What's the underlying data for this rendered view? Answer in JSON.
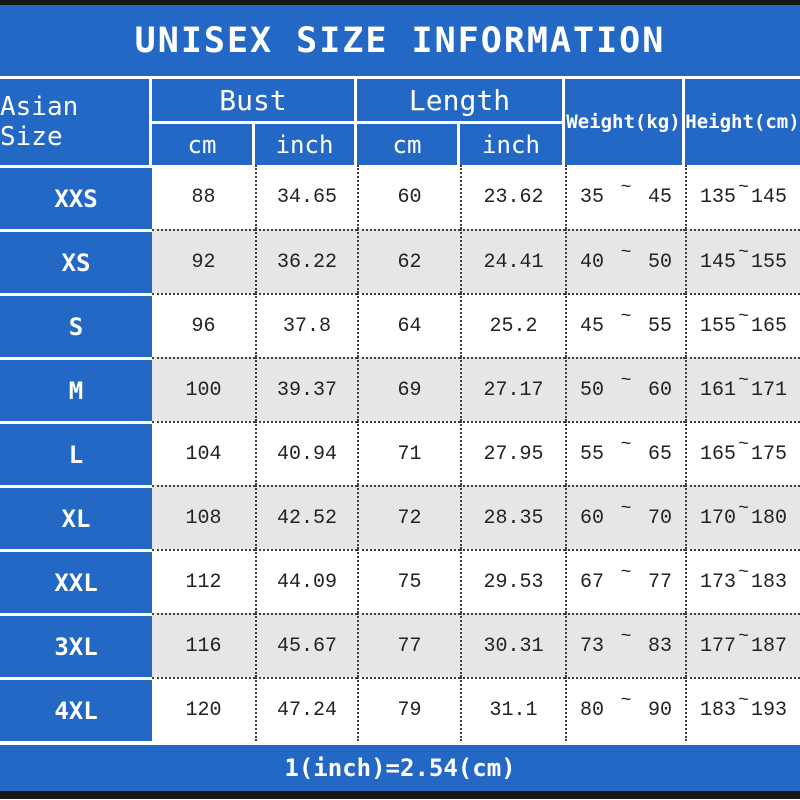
{
  "title": "UNISEX SIZE INFORMATION",
  "footer_note": "1(inch)=2.54(cm)",
  "strings": {
    "tilde": "~"
  },
  "colors": {
    "accent_blue": "#2368c4",
    "alt_row_gray": "#e7e5e8",
    "bar_black": "#161616",
    "text_dark": "#222222"
  },
  "header": {
    "size": "Asian Size",
    "bust": "Bust",
    "length": "Length",
    "weight": "Weight(kg)",
    "height": "Height(cm)",
    "cm": "cm",
    "inch": "inch"
  },
  "rows": [
    {
      "size": "XXS",
      "bust_cm": "88",
      "bust_inch": "34.65",
      "length_cm": "60",
      "length_inch": "23.62",
      "weight_min": "35",
      "weight_max": "45",
      "height_min": "135",
      "height_max": "145"
    },
    {
      "size": "XS",
      "bust_cm": "92",
      "bust_inch": "36.22",
      "length_cm": "62",
      "length_inch": "24.41",
      "weight_min": "40",
      "weight_max": "50",
      "height_min": "145",
      "height_max": "155"
    },
    {
      "size": "S",
      "bust_cm": "96",
      "bust_inch": "37.8",
      "length_cm": "64",
      "length_inch": "25.2",
      "weight_min": "45",
      "weight_max": "55",
      "height_min": "155",
      "height_max": "165"
    },
    {
      "size": "M",
      "bust_cm": "100",
      "bust_inch": "39.37",
      "length_cm": "69",
      "length_inch": "27.17",
      "weight_min": "50",
      "weight_max": "60",
      "height_min": "161",
      "height_max": "171"
    },
    {
      "size": "L",
      "bust_cm": "104",
      "bust_inch": "40.94",
      "length_cm": "71",
      "length_inch": "27.95",
      "weight_min": "55",
      "weight_max": "65",
      "height_min": "165",
      "height_max": "175"
    },
    {
      "size": "XL",
      "bust_cm": "108",
      "bust_inch": "42.52",
      "length_cm": "72",
      "length_inch": "28.35",
      "weight_min": "60",
      "weight_max": "70",
      "height_min": "170",
      "height_max": "180"
    },
    {
      "size": "XXL",
      "bust_cm": "112",
      "bust_inch": "44.09",
      "length_cm": "75",
      "length_inch": "29.53",
      "weight_min": "67",
      "weight_max": "77",
      "height_min": "173",
      "height_max": "183"
    },
    {
      "size": "3XL",
      "bust_cm": "116",
      "bust_inch": "45.67",
      "length_cm": "77",
      "length_inch": "30.31",
      "weight_min": "73",
      "weight_max": "83",
      "height_min": "177",
      "height_max": "187"
    },
    {
      "size": "4XL",
      "bust_cm": "120",
      "bust_inch": "47.24",
      "length_cm": "79",
      "length_inch": "31.1",
      "weight_min": "80",
      "weight_max": "90",
      "height_min": "183",
      "height_max": "193"
    }
  ],
  "chart_data": {
    "type": "table",
    "title": "UNISEX SIZE INFORMATION",
    "columns": [
      "Asian Size",
      "Bust cm",
      "Bust inch",
      "Length cm",
      "Length inch",
      "Weight(kg)",
      "Height(cm)"
    ],
    "rows": [
      [
        "XXS",
        88,
        34.65,
        60,
        23.62,
        "35~45",
        "135~145"
      ],
      [
        "XS",
        92,
        36.22,
        62,
        24.41,
        "40~50",
        "145~155"
      ],
      [
        "S",
        96,
        37.8,
        64,
        25.2,
        "45~55",
        "155~165"
      ],
      [
        "M",
        100,
        39.37,
        69,
        27.17,
        "50~60",
        "161~171"
      ],
      [
        "L",
        104,
        40.94,
        71,
        27.95,
        "55~65",
        "165~175"
      ],
      [
        "XL",
        108,
        42.52,
        72,
        28.35,
        "60~70",
        "170~180"
      ],
      [
        "XXL",
        112,
        44.09,
        75,
        29.53,
        "67~77",
        "173~183"
      ],
      [
        "3XL",
        116,
        45.67,
        77,
        30.31,
        "73~83",
        "177~187"
      ],
      [
        "4XL",
        120,
        47.24,
        79,
        31.1,
        "80~90",
        "183~193"
      ]
    ],
    "note": "1(inch)=2.54(cm)"
  }
}
